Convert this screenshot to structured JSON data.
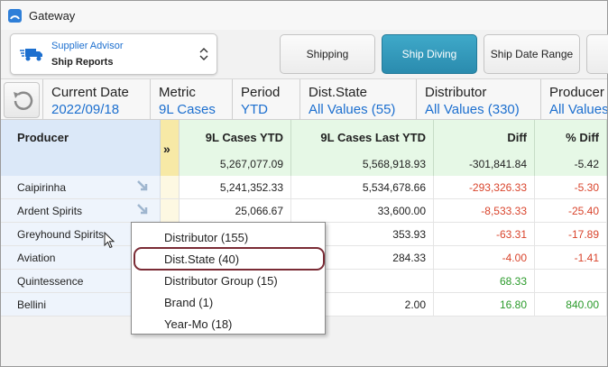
{
  "app": {
    "title": "Gateway",
    "accent": "#2a8bae",
    "link_color": "#1c6fcf"
  },
  "advisor": {
    "top_label": "Supplier Advisor",
    "bottom_label": "Ship Reports",
    "icon": "truck-icon"
  },
  "toolbar": {
    "buttons": [
      {
        "label": "Shipping",
        "active": false
      },
      {
        "label": "Ship Diving",
        "active": true
      },
      {
        "label": "Ship Date Range",
        "active": false
      }
    ]
  },
  "filters": [
    {
      "label": "Current Date",
      "value": "2022/09/18"
    },
    {
      "label": "Metric",
      "value": "9L Cases"
    },
    {
      "label": "Period",
      "value": "YTD"
    },
    {
      "label": "Dist.State",
      "value": "All Values (55)"
    },
    {
      "label": "Distributor",
      "value": "All Values (330)"
    },
    {
      "label": "Producer",
      "value": "All Values"
    }
  ],
  "grid": {
    "producer_header": "Producer",
    "expander_glyph": "»",
    "columns": [
      {
        "name": "9L Cases YTD",
        "total": "5,267,077.09"
      },
      {
        "name": "9L Cases Last YTD",
        "total": "5,568,918.93"
      },
      {
        "name": "Diff",
        "total": "-301,841.84"
      },
      {
        "name": "% Diff",
        "total": "-5.42"
      }
    ],
    "rows": [
      {
        "producer": "Caipirinha",
        "cells": [
          "5,241,352.33",
          "5,534,678.66",
          "-293,326.33",
          "-5.30"
        ],
        "signs": [
          "plain",
          "plain",
          "neg",
          "neg"
        ]
      },
      {
        "producer": "Ardent Spirits",
        "cells": [
          "25,066.67",
          "33,600.00",
          "-8,533.33",
          "-25.40"
        ],
        "signs": [
          "plain",
          "plain",
          "neg",
          "neg"
        ]
      },
      {
        "producer": "Greyhound Spirits",
        "cells": [
          "",
          "353.93",
          "-63.31",
          "-17.89"
        ],
        "signs": [
          "plain",
          "plain",
          "neg",
          "neg"
        ]
      },
      {
        "producer": "Aviation",
        "cells": [
          "",
          "284.33",
          "-4.00",
          "-1.41"
        ],
        "signs": [
          "plain",
          "plain",
          "neg",
          "neg"
        ]
      },
      {
        "producer": "Quintessence",
        "cells": [
          "",
          "",
          "68.33",
          ""
        ],
        "signs": [
          "plain",
          "plain",
          "pos",
          "pos"
        ]
      },
      {
        "producer": "Bellini",
        "cells": [
          "",
          "2.00",
          "16.80",
          "840.00"
        ],
        "signs": [
          "plain",
          "plain",
          "pos",
          "pos"
        ]
      }
    ]
  },
  "context_menu": {
    "items": [
      {
        "label": "Distributor (155)",
        "selected": false
      },
      {
        "label": "Dist.State (40)",
        "selected": true
      },
      {
        "label": "Distributor Group (15)",
        "selected": false
      },
      {
        "label": "Brand (1)",
        "selected": false
      },
      {
        "label": "Year-Mo (18)",
        "selected": false
      }
    ]
  }
}
